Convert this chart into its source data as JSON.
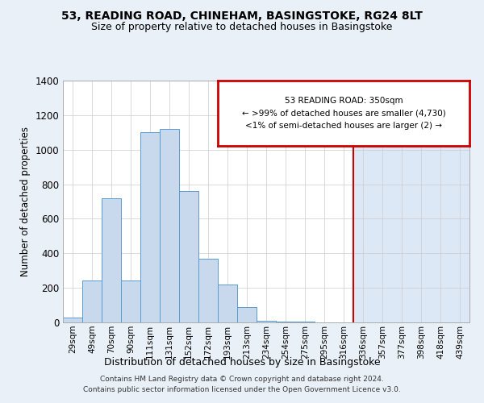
{
  "title1": "53, READING ROAD, CHINEHAM, BASINGSTOKE, RG24 8LT",
  "title2": "Size of property relative to detached houses in Basingstoke",
  "xlabel": "Distribution of detached houses by size in Basingstoke",
  "ylabel": "Number of detached properties",
  "categories": [
    "29sqm",
    "49sqm",
    "70sqm",
    "90sqm",
    "111sqm",
    "131sqm",
    "152sqm",
    "172sqm",
    "193sqm",
    "213sqm",
    "234sqm",
    "254sqm",
    "275sqm",
    "295sqm",
    "316sqm",
    "336sqm",
    "357sqm",
    "377sqm",
    "398sqm",
    "418sqm",
    "439sqm"
  ],
  "values": [
    30,
    245,
    720,
    245,
    1100,
    1120,
    760,
    370,
    220,
    90,
    10,
    5,
    3,
    2,
    2,
    2,
    2,
    2,
    2,
    2,
    2
  ],
  "bar_color": "#c8d9ed",
  "bar_edge_color": "#5b9bd5",
  "background_color": "#eaf0f8",
  "plot_bg_color": "#ffffff",
  "highlight_bg_color": "#dce8f5",
  "annotation_text_line1": "53 READING ROAD: 350sqm",
  "annotation_text_line2": "← >99% of detached houses are smaller (4,730)",
  "annotation_text_line3": "<1% of semi-detached houses are larger (2) →",
  "annotation_box_color": "#ffffff",
  "annotation_box_edge": "#cc0000",
  "vline_color": "#cc0000",
  "vline_index": 15,
  "footer": "Contains HM Land Registry data © Crown copyright and database right 2024.\nContains public sector information licensed under the Open Government Licence v3.0.",
  "ylim": [
    0,
    1400
  ],
  "yticks": [
    0,
    200,
    400,
    600,
    800,
    1000,
    1200,
    1400
  ]
}
